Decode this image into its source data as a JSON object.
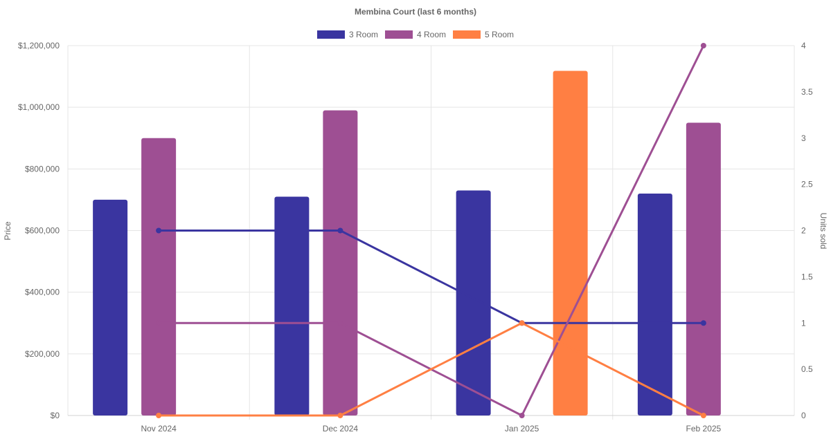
{
  "chart_data": {
    "type": "bar",
    "title": "Membina Court (last 6 months)",
    "categories": [
      "Nov 2024",
      "Dec 2024",
      "Jan 2025",
      "Feb 2025"
    ],
    "y_left": {
      "label": "Price",
      "range": [
        0,
        1200000
      ],
      "ticks": [
        0,
        200000,
        400000,
        600000,
        800000,
        1000000,
        1200000
      ],
      "tick_labels": [
        "$0",
        "$200,000",
        "$400,000",
        "$600,000",
        "$800,000",
        "$1,000,000",
        "$1,200,000"
      ]
    },
    "y_right": {
      "label": "Units sold",
      "range": [
        0,
        4
      ],
      "ticks": [
        0,
        0.5,
        1,
        1.5,
        2,
        2.5,
        3,
        3.5,
        4
      ],
      "tick_labels": [
        "0",
        "0.5",
        "1",
        "1.5",
        "2",
        "2.5",
        "3",
        "3.5",
        "4"
      ]
    },
    "legend": {
      "position": "top-center",
      "entries": [
        {
          "name": "3 Room",
          "color": "#3a35a0"
        },
        {
          "name": "4 Room",
          "color": "#9e4f93"
        },
        {
          "name": "5 Room",
          "color": "#ff7f43"
        }
      ]
    },
    "grid": true,
    "bar_series": [
      {
        "name": "3 Room",
        "color": "#3a35a0",
        "values": [
          700000,
          710000,
          730000,
          720000
        ]
      },
      {
        "name": "4 Room",
        "color": "#9e4f93",
        "values": [
          900000,
          990000,
          null,
          950000
        ]
      },
      {
        "name": "5 Room",
        "color": "#ff7f43",
        "values": [
          null,
          null,
          1118000,
          null
        ]
      }
    ],
    "line_series": [
      {
        "name": "3 Room",
        "color": "#3a35a0",
        "axis": "right",
        "values": [
          2,
          2,
          1,
          1
        ]
      },
      {
        "name": "4 Room",
        "color": "#9e4f93",
        "axis": "right",
        "values": [
          1,
          1,
          0,
          4
        ]
      },
      {
        "name": "5 Room",
        "color": "#ff7f43",
        "axis": "right",
        "values": [
          0,
          0,
          1,
          0
        ]
      }
    ],
    "line_notes": "4 Room line starts at Nov 2024 without visible markers for first two points; 3 Room line begins at Nov 2024 marker"
  }
}
